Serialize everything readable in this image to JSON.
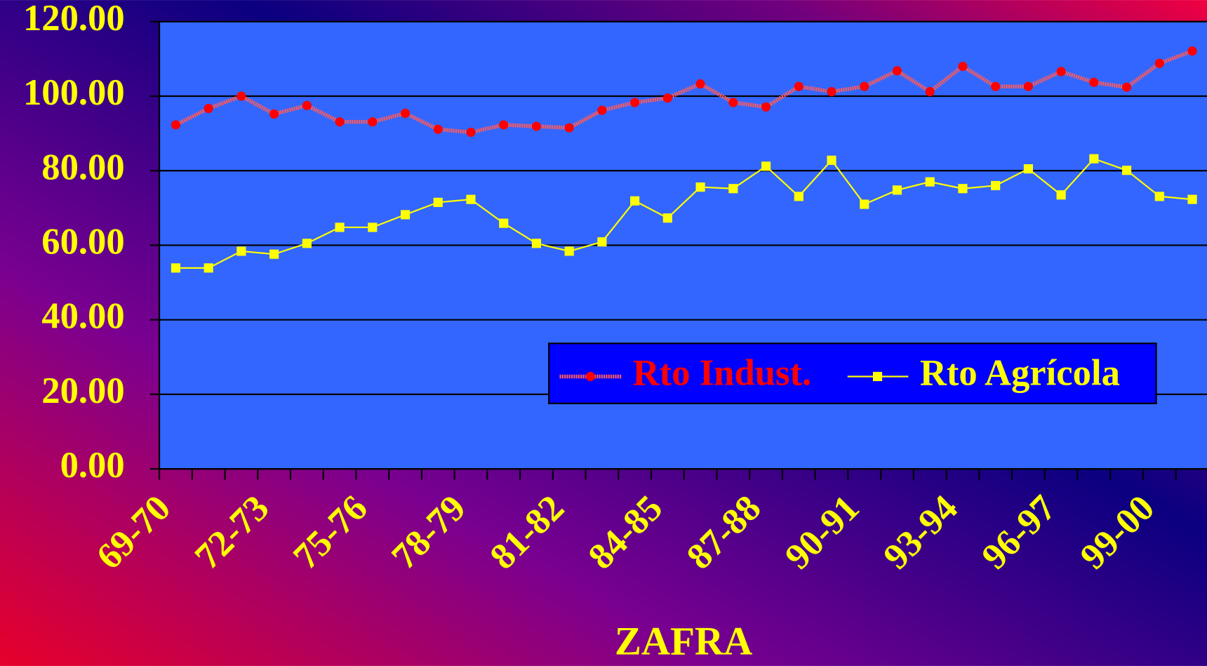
{
  "chart_data": {
    "type": "line",
    "x_label": "ZAFRA",
    "categories": [
      "69-70",
      null,
      null,
      "72-73",
      null,
      null,
      "75-76",
      null,
      null,
      "78-79",
      null,
      null,
      "81-82",
      null,
      null,
      "84-85",
      null,
      null,
      "87-88",
      null,
      null,
      "90-91",
      null,
      null,
      "93-94",
      null,
      null,
      "96-97",
      null,
      null,
      "99-00",
      null
    ],
    "series": [
      {
        "name": "Rto Indust.",
        "color": "#ff0000",
        "values": [
          92.3,
          96.7,
          100,
          95.2,
          97.5,
          93.1,
          93.1,
          95.4,
          91.1,
          90.3,
          92.3,
          91.9,
          91.5,
          96.2,
          98.3,
          99.5,
          103.3,
          98.3,
          97.1,
          102.6,
          101.2,
          102.6,
          106.8,
          101.2,
          108,
          102.6,
          102.6,
          106.6,
          103.7,
          102.4,
          108.8,
          112.1
        ]
      },
      {
        "name": "Rto Agrícola",
        "color": "#ffff00",
        "values": [
          53.9,
          53.9,
          58.4,
          57.6,
          60.5,
          64.8,
          64.8,
          68.2,
          71.5,
          72.3,
          65.9,
          60.5,
          58.4,
          60.9,
          71.9,
          67.3,
          75.6,
          75.2,
          81.2,
          73.1,
          82.8,
          71,
          74.8,
          77,
          75.2,
          76,
          80.5,
          73.5,
          83.2,
          80.1,
          73.1,
          72.3
        ]
      }
    ],
    "ylim": [
      0,
      120
    ],
    "yticks": [
      {
        "value": 0,
        "label": "0.00"
      },
      {
        "value": 20,
        "label": "20.00"
      },
      {
        "value": 40,
        "label": "40.00"
      },
      {
        "value": 60,
        "label": "60.00"
      },
      {
        "value": 80,
        "label": "80.00"
      },
      {
        "value": 100,
        "label": "100.00"
      },
      {
        "value": 120,
        "label": "120.00"
      }
    ],
    "grid": true
  }
}
